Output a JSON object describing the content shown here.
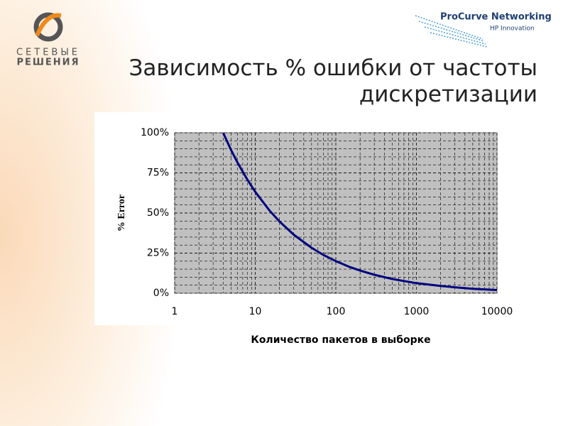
{
  "branding": {
    "left_line1": "СЕТЕВЫЕ",
    "left_line2": "РЕШЕНИЯ",
    "right_title": "ProCurve Networking",
    "right_subtitle": "HP Innovation"
  },
  "chart_data": {
    "type": "line",
    "title": "Зависимость % ошибки от частоты дискретизации",
    "x_label": "Количество пакетов в выборке",
    "y_label": "% Error",
    "x": [
      4,
      5,
      6,
      8,
      10,
      15,
      20,
      30,
      50,
      70,
      100,
      150,
      200,
      300,
      500,
      700,
      1000,
      2000,
      3000,
      5000,
      10000
    ],
    "series": [
      {
        "name": "% Error",
        "color": "#000080",
        "values": [
          100,
          89.4,
          81.6,
          70.7,
          63.2,
          51.6,
          44.7,
          36.5,
          28.3,
          23.9,
          20,
          16.3,
          14.1,
          11.5,
          8.9,
          7.6,
          6.3,
          4.5,
          3.7,
          2.8,
          2
        ]
      }
    ],
    "xscale": "log",
    "xlim": [
      1,
      10000
    ],
    "xticks": [
      1,
      10,
      100,
      1000,
      10000
    ],
    "ylim": [
      0,
      100
    ],
    "yticks": [
      {
        "value": 0,
        "label": "0%"
      },
      {
        "value": 25,
        "label": "25%"
      },
      {
        "value": 50,
        "label": "50%"
      },
      {
        "value": 75,
        "label": "75%"
      },
      {
        "value": 100,
        "label": "100%"
      }
    ],
    "grid": true
  }
}
